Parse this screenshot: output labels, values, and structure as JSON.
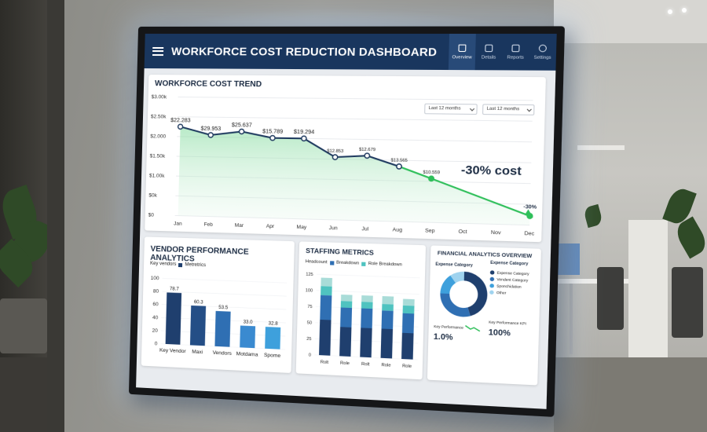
{
  "app": {
    "title": "WORKFORCE COST REDUCTION DASHBOARD",
    "nav": [
      {
        "label": "Overview",
        "icon": "home-icon",
        "active": true
      },
      {
        "label": "Details",
        "icon": "document-icon",
        "active": false
      },
      {
        "label": "Reports",
        "icon": "report-icon",
        "active": false
      },
      {
        "label": "Settings",
        "icon": "gear-icon",
        "active": false
      }
    ]
  },
  "colors": {
    "navy": "#19365e",
    "line": "#1f3a5f",
    "green": "#2fbf5a",
    "bar_dark": "#1f3f6e",
    "bar_mid": "#2f6fb3",
    "bar_light": "#3ea0dc",
    "teal": "#4fc3c0"
  },
  "trend": {
    "title": "WORKFORCE COST TREND",
    "filters": [
      "Last 12 months",
      "Last 12 months"
    ],
    "annotation": "-30% cost",
    "end_label": "-30%"
  },
  "vendor": {
    "title": "VENDOR PERFORMANCE ANALYTICS",
    "legend_prefix": "Key vendors",
    "legend_label": "Metretrics"
  },
  "staffing": {
    "title": "STAFFING METRICS",
    "legend": [
      "Headcount",
      "Breakdown",
      "Role Breakdown"
    ]
  },
  "financial": {
    "title": "FINANCIAL ANALYTICS OVERVIEW",
    "expense_label": "Expense Category",
    "expense_label_right": "Expense Category",
    "legend": [
      "Expense Category",
      "Vendent Category",
      "Sponchidation",
      "Other"
    ],
    "kpi_left_label": "Key Performance",
    "kpi_left_value": "1.0%",
    "kpi_right_label": "Key Performance KPI",
    "kpi_right_value": "100%"
  },
  "chart_data": [
    {
      "type": "line",
      "title": "WORKFORCE COST TREND",
      "x": [
        "Jan",
        "Feb",
        "Mar",
        "Apr",
        "May",
        "Jun",
        "Jul",
        "Aug",
        "Sep",
        "Oct",
        "Nov",
        "Dec"
      ],
      "yticks": [
        "$3.00k",
        "$2.50k",
        "$2.000",
        "$1.50k",
        "$1.00k",
        "$0k",
        "$0"
      ],
      "series": [
        {
          "values": [
            2.25,
            2.05,
            2.15,
            2.0,
            2.0,
            1.55,
            1.6,
            1.35,
            1.07,
            null,
            null,
            0.22
          ],
          "labels": [
            "$22.283",
            "$29.953",
            "$25.637",
            "$15.789",
            "$19.294",
            "$12.853",
            "$12.679",
            "$13.565",
            "$10.559",
            "",
            "",
            ""
          ]
        }
      ],
      "ylim": [
        0,
        3.0
      ]
    },
    {
      "type": "bar",
      "title": "VENDOR PERFORMANCE ANALYTICS",
      "categories": [
        "Key Vendor",
        "Maxi",
        "Vendors",
        "Motdama",
        "Spome"
      ],
      "values": [
        78.7,
        60.3,
        53.5,
        33.0,
        32.8
      ],
      "value_labels": [
        "78.7",
        "60.3",
        "53.5",
        "33.0",
        "32.8"
      ],
      "yticks": [
        0,
        20,
        40,
        60,
        80,
        100
      ],
      "ylim": [
        0,
        100
      ]
    },
    {
      "type": "bar",
      "title": "STAFFING METRICS",
      "categories": [
        "Rolt",
        "Role",
        "Rolt",
        "Role",
        "Role"
      ],
      "series": [
        {
          "name": "Headcount",
          "values": [
            55,
            45,
            45,
            45,
            40
          ]
        },
        {
          "name": "Breakdown",
          "values": [
            38,
            30,
            30,
            28,
            30
          ]
        },
        {
          "name": "Role Breakdown",
          "values": [
            14,
            10,
            10,
            10,
            12
          ]
        },
        {
          "values": [
            13,
            10,
            10,
            12,
            10
          ]
        }
      ],
      "yticks": [
        0,
        25,
        50,
        75,
        100,
        125
      ],
      "ylim": [
        0,
        125
      ]
    },
    {
      "type": "pie",
      "title": "FINANCIAL ANALYTICS OVERVIEW",
      "labels": [
        "Expense Category",
        "Vendent Category",
        "Sponchidation",
        "Other"
      ],
      "values": [
        45,
        30,
        15,
        10
      ]
    }
  ]
}
